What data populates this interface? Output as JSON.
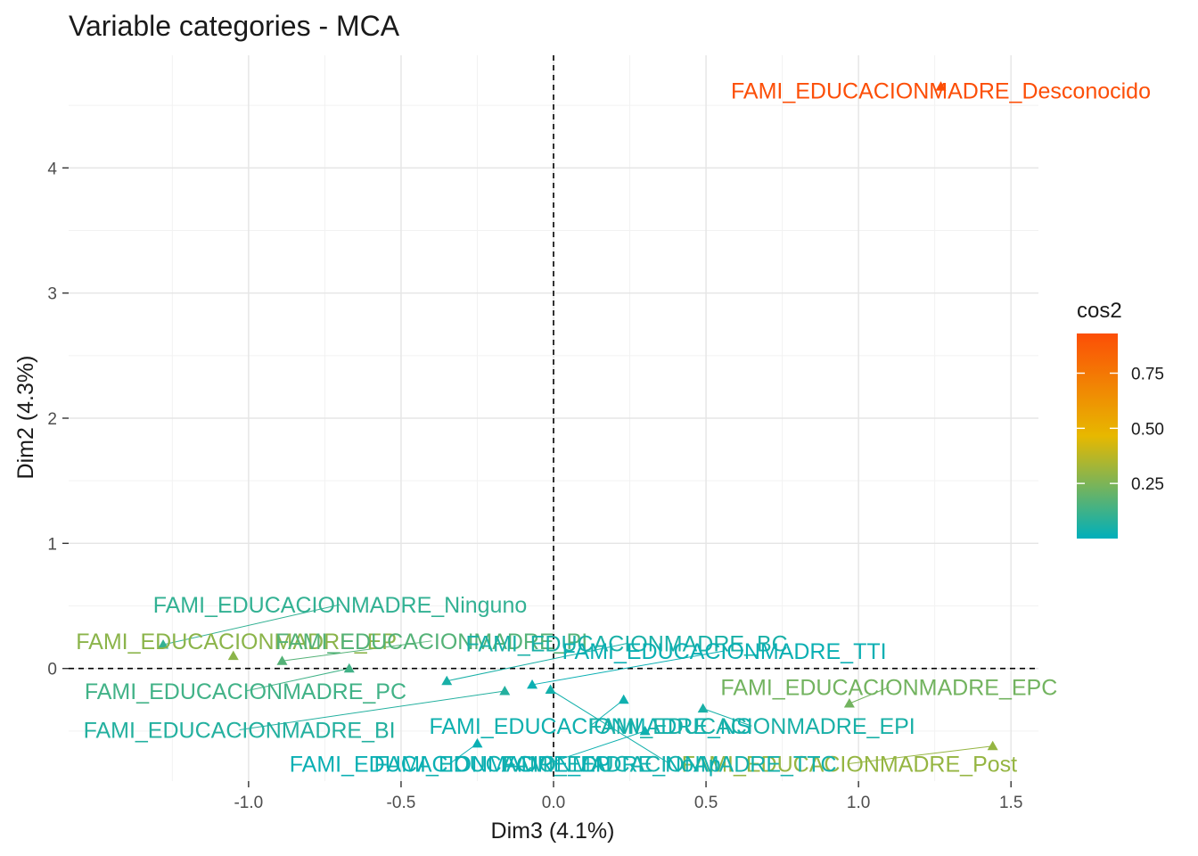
{
  "chart_data": {
    "type": "scatter",
    "title": "Variable categories - MCA",
    "xlabel": "Dim3 (4.1%)",
    "ylabel": "Dim2 (4.3%)",
    "xlim": [
      -1.59,
      1.59
    ],
    "ylim": [
      -0.9,
      4.9
    ],
    "x_ticks": [
      -1.0,
      -0.5,
      0.0,
      0.5,
      1.0,
      1.5
    ],
    "x_tick_labels": [
      "-1.0",
      "-0.5",
      "0.0",
      "0.5",
      "1.0",
      "1.5"
    ],
    "y_ticks": [
      0,
      1,
      2,
      3,
      4
    ],
    "y_tick_labels": [
      "0",
      "1",
      "2",
      "3",
      "4"
    ],
    "grid": true,
    "reference_lines": {
      "x": 0,
      "y": 0,
      "style": "dashed"
    },
    "legend": {
      "title": "cos2",
      "placement": "right",
      "range": [
        0.0,
        0.93
      ],
      "ticks": [
        0.25,
        0.5,
        0.75
      ],
      "tick_labels": [
        "0.25",
        "0.50",
        "0.75"
      ],
      "colors": [
        "#00AFBB",
        "#E7B800",
        "#FC4E07"
      ]
    },
    "points": [
      {
        "label": "FAMI_EDUCACIONMADRE_Desconocida",
        "display_label": "FAMI_EDUCACIONMADRE_Desconocido",
        "x": 1.27,
        "y": 4.65,
        "cos2": 0.93,
        "label_x": 1.27,
        "label_y": 4.62
      },
      {
        "label": "FAMI_EDUCACIONMADRE_Ninguno",
        "x": -1.28,
        "y": 0.19,
        "cos2": 0.1,
        "label_x": -0.7,
        "label_y": 0.51
      },
      {
        "label": "FAMI_EDUCACIONMADRE_EP",
        "x": -1.05,
        "y": 0.1,
        "cos2": 0.28,
        "label_x": -1.04,
        "label_y": 0.22
      },
      {
        "label": "FAMI_EDUCACIONMADRE_PI",
        "x": -0.89,
        "y": 0.06,
        "cos2": 0.17,
        "label_x": -0.4,
        "label_y": 0.22
      },
      {
        "label": "FAMI_EDUCACIONMADRE_BC",
        "x": -0.35,
        "y": -0.1,
        "cos2": 0.05,
        "label_x": 0.24,
        "label_y": 0.2
      },
      {
        "label": "FAMI_EDUCACIONMADRE_TTI",
        "x": -0.07,
        "y": -0.13,
        "cos2": 0.02,
        "label_x": 0.56,
        "label_y": 0.14
      },
      {
        "label": "FAMI_EDUCACIONMADRE_PC",
        "x": -0.67,
        "y": 0.0,
        "cos2": 0.13,
        "label_x": -1.01,
        "label_y": -0.18
      },
      {
        "label": "FAMI_EDUCACIONMADRE_EPC",
        "x": 0.97,
        "y": -0.28,
        "cos2": 0.23,
        "label_x": 1.1,
        "label_y": -0.15
      },
      {
        "label": "FAMI_EDUCACIONMADRE_BI",
        "x": -0.16,
        "y": -0.18,
        "cos2": 0.07,
        "label_x": -1.03,
        "label_y": -0.49
      },
      {
        "label": "FAMI_EDUCACIONMADRE_NS",
        "x": 0.23,
        "y": -0.25,
        "cos2": 0.03,
        "label_x": 0.12,
        "label_y": -0.46
      },
      {
        "label": "FAMI_EDUCACIONMADRE_EPI",
        "x": 0.49,
        "y": -0.32,
        "cos2": 0.05,
        "label_x": 0.65,
        "label_y": -0.46
      },
      {
        "label": "FAMI_EDUCACIONMADRE_Post",
        "x": 1.44,
        "y": -0.62,
        "cos2": 0.3,
        "label_x": 0.97,
        "label_y": -0.76
      },
      {
        "label": "FAMI_EDUCACIONMADRE_TTC",
        "x": -0.01,
        "y": -0.17,
        "cos2": 0.04,
        "label_x": 0.38,
        "label_y": -0.76
      },
      {
        "label": "FAMI_EDUCACIONMADRE_No_Aplica",
        "display_label": "FAMI_EDUCACIONMADRE_NoAp",
        "x": 0.3,
        "y": -0.5,
        "cos2": 0.03,
        "label_x": -0.02,
        "label_y": -0.76
      },
      {
        "label": "FAMI_EDUCACIONMADRE_EP2",
        "display_label": "FAMI_EDUCACIONMADRE_EP",
        "x": -0.25,
        "y": -0.6,
        "cos2": 0.02,
        "label_x": -0.34,
        "label_y": -0.76
      }
    ]
  }
}
